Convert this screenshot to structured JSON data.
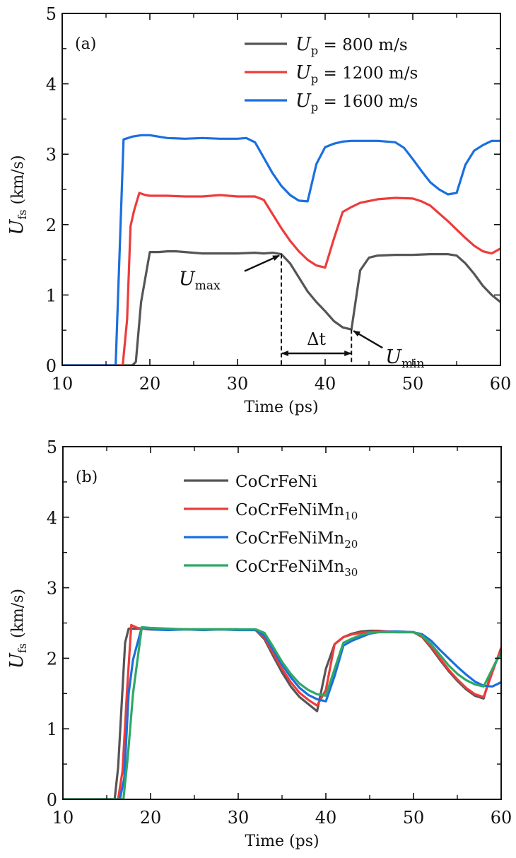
{
  "chart_data": [
    {
      "type": "line",
      "panel_label": "(a)",
      "title": "",
      "xlabel": "Time (ps)",
      "ylabel_main": "U",
      "ylabel_sub": "fs",
      "ylabel_unit": " (km/s)",
      "xlim": [
        10,
        60
      ],
      "ylim": [
        0,
        5
      ],
      "xticks": [
        10,
        20,
        30,
        40,
        50,
        60
      ],
      "yticks": [
        0,
        1,
        2,
        3,
        4,
        5
      ],
      "grid": false,
      "legend_position": "top-right",
      "series": [
        {
          "name": "U_p = 800 m/s",
          "legend_main": "U",
          "legend_sub": "p",
          "legend_rest": " = 800  m/s",
          "color": "#555555",
          "x": [
            10,
            12,
            14,
            16,
            17,
            18,
            18.4,
            19,
            20,
            21,
            22,
            23,
            24,
            25,
            26,
            28,
            30,
            32,
            33,
            34,
            35,
            36,
            37,
            38,
            39,
            40,
            41,
            42,
            43,
            44,
            45,
            46,
            48,
            50,
            52,
            54,
            55,
            56,
            57,
            58,
            59,
            60
          ],
          "values": [
            0,
            0,
            0,
            0,
            0,
            0,
            0.05,
            0.9,
            1.61,
            1.61,
            1.62,
            1.62,
            1.61,
            1.6,
            1.59,
            1.59,
            1.59,
            1.6,
            1.59,
            1.6,
            1.58,
            1.45,
            1.25,
            1.05,
            0.9,
            0.77,
            0.63,
            0.54,
            0.51,
            1.35,
            1.53,
            1.56,
            1.57,
            1.57,
            1.58,
            1.58,
            1.56,
            1.45,
            1.3,
            1.13,
            1.0,
            0.9
          ]
        },
        {
          "name": "U_p = 1200 m/s",
          "legend_main": "U",
          "legend_sub": "p",
          "legend_rest": " = 1200  m/s",
          "color": "#ee3b3b",
          "x": [
            10,
            12,
            14,
            16,
            16.9,
            17.4,
            17.8,
            18.2,
            18.8,
            19.5,
            20,
            22,
            24,
            26,
            28,
            30,
            32,
            33,
            34,
            35,
            36,
            37,
            38,
            39,
            40,
            41,
            42,
            43,
            44,
            46,
            48,
            50,
            51,
            52,
            53,
            54,
            55,
            56,
            57,
            58,
            59,
            60
          ],
          "values": [
            0,
            0,
            0,
            0,
            0,
            0.65,
            1.98,
            2.2,
            2.45,
            2.42,
            2.41,
            2.41,
            2.4,
            2.4,
            2.42,
            2.4,
            2.4,
            2.35,
            2.15,
            1.95,
            1.77,
            1.62,
            1.5,
            1.42,
            1.39,
            1.8,
            2.18,
            2.25,
            2.31,
            2.36,
            2.38,
            2.37,
            2.33,
            2.27,
            2.16,
            2.05,
            1.93,
            1.81,
            1.7,
            1.62,
            1.59,
            1.66
          ]
        },
        {
          "name": "U_p = 1600 m/s",
          "legend_main": "U",
          "legend_sub": "p",
          "legend_rest": " = 1600  m/s",
          "color": "#1a6fdf",
          "x": [
            10,
            12,
            14,
            16,
            16.1,
            17,
            18,
            19,
            20,
            21,
            22,
            24,
            26,
            28,
            30,
            31,
            32,
            33,
            34,
            35,
            36,
            37,
            38,
            39,
            40,
            41,
            42,
            43,
            44,
            46,
            48,
            49,
            50,
            51,
            52,
            53,
            54,
            55,
            56,
            57,
            58,
            59,
            60
          ],
          "values": [
            0,
            0,
            0,
            0,
            0,
            3.21,
            3.25,
            3.27,
            3.27,
            3.25,
            3.23,
            3.22,
            3.23,
            3.22,
            3.22,
            3.23,
            3.17,
            2.95,
            2.73,
            2.55,
            2.42,
            2.34,
            2.33,
            2.86,
            3.1,
            3.15,
            3.18,
            3.19,
            3.19,
            3.19,
            3.17,
            3.09,
            2.93,
            2.76,
            2.6,
            2.5,
            2.43,
            2.45,
            2.85,
            3.05,
            3.13,
            3.19,
            3.19
          ]
        }
      ],
      "annotations": [
        {
          "text_main": "U",
          "text_sub": "max",
          "x": 35,
          "y": 1.58,
          "kind": "arrow-label"
        },
        {
          "text_main": "U",
          "text_sub": "min",
          "x": 43,
          "y": 0.51,
          "kind": "arrow-label"
        },
        {
          "text": "Δt",
          "x_from": 35,
          "x_to": 43,
          "kind": "double-arrow"
        }
      ]
    },
    {
      "type": "line",
      "panel_label": "(b)",
      "title": "",
      "xlabel": "Time (ps)",
      "ylabel_main": "U",
      "ylabel_sub": "fs",
      "ylabel_unit": " (km/s)",
      "xlim": [
        10,
        60
      ],
      "ylim": [
        0,
        5
      ],
      "xticks": [
        10,
        20,
        30,
        40,
        50,
        60
      ],
      "yticks": [
        0,
        1,
        2,
        3,
        4,
        5
      ],
      "grid": false,
      "legend_position": "top-center",
      "series": [
        {
          "name": "CoCrFeNi",
          "legend_main": "CoCrFeNi",
          "legend_sub": "",
          "color": "#555555",
          "x": [
            10,
            12,
            14,
            15.9,
            16.3,
            17.1,
            17.5,
            18,
            19,
            20,
            22,
            24,
            26,
            28,
            30,
            32,
            33,
            34,
            35,
            36,
            37,
            38,
            39,
            40,
            41,
            42,
            43,
            44,
            45,
            46,
            48,
            50,
            51,
            52,
            53,
            54,
            55,
            56,
            57,
            58,
            59,
            60
          ],
          "values": [
            0,
            0,
            0,
            0,
            0.45,
            2.22,
            2.42,
            2.42,
            2.42,
            2.41,
            2.41,
            2.41,
            2.41,
            2.41,
            2.41,
            2.4,
            2.27,
            2.03,
            1.8,
            1.6,
            1.45,
            1.35,
            1.25,
            1.85,
            2.2,
            2.3,
            2.35,
            2.38,
            2.39,
            2.39,
            2.37,
            2.37,
            2.3,
            2.15,
            1.98,
            1.82,
            1.68,
            1.56,
            1.47,
            1.43,
            1.85,
            2.1
          ]
        },
        {
          "name": "CoCrFeNiMn10",
          "legend_main": "CoCrFeNiMn",
          "legend_sub": "10",
          "color": "#ee3b3b",
          "x": [
            10,
            12,
            14,
            16.3,
            16.8,
            17.3,
            17.8,
            18.5,
            19,
            20,
            22,
            24,
            26,
            28,
            30,
            32,
            33,
            34,
            35,
            36,
            37,
            38,
            39,
            40,
            41,
            42,
            43,
            44,
            45,
            46,
            48,
            50,
            51,
            52,
            53,
            54,
            55,
            56,
            57,
            58,
            59,
            60
          ],
          "values": [
            0,
            0,
            0,
            0,
            0.4,
            1.5,
            2.47,
            2.43,
            2.42,
            2.41,
            2.41,
            2.41,
            2.41,
            2.41,
            2.41,
            2.4,
            2.29,
            2.07,
            1.85,
            1.66,
            1.51,
            1.41,
            1.33,
            1.55,
            2.2,
            2.3,
            2.34,
            2.36,
            2.37,
            2.38,
            2.38,
            2.37,
            2.31,
            2.17,
            2.0,
            1.84,
            1.7,
            1.58,
            1.49,
            1.45,
            1.8,
            2.15
          ]
        },
        {
          "name": "CoCrFeNiMn20",
          "legend_main": "CoCrFeNiMn",
          "legend_sub": "20",
          "color": "#1a6fdf",
          "x": [
            10,
            12,
            14,
            16.5,
            17,
            17.5,
            18,
            19,
            20,
            22,
            24,
            26,
            28,
            30,
            32,
            33,
            34,
            35,
            36,
            37,
            38,
            39,
            40,
            41,
            42,
            43,
            44,
            45,
            46,
            48,
            50,
            51,
            52,
            53,
            54,
            55,
            56,
            57,
            58,
            59,
            60
          ],
          "values": [
            0,
            0,
            0,
            0,
            0.3,
            1.5,
            1.98,
            2.44,
            2.41,
            2.4,
            2.41,
            2.4,
            2.41,
            2.4,
            2.4,
            2.32,
            2.12,
            1.91,
            1.73,
            1.58,
            1.48,
            1.42,
            1.39,
            1.75,
            2.18,
            2.25,
            2.3,
            2.35,
            2.37,
            2.38,
            2.37,
            2.34,
            2.25,
            2.12,
            2.0,
            1.88,
            1.77,
            1.67,
            1.61,
            1.6,
            1.66
          ]
        },
        {
          "name": "CoCrFeNiMn30",
          "legend_main": "CoCrFeNiMn",
          "legend_sub": "30",
          "color": "#2ea866",
          "x": [
            10,
            12,
            14,
            16.9,
            17.4,
            18,
            19,
            20,
            22,
            24,
            26,
            28,
            30,
            32,
            33,
            34,
            35,
            36,
            37,
            38,
            39,
            40,
            41,
            42,
            43,
            44,
            45,
            46,
            48,
            50,
            51,
            52,
            53,
            54,
            55,
            56,
            57,
            58,
            59,
            60
          ],
          "values": [
            0,
            0,
            0,
            0,
            0.6,
            1.5,
            2.44,
            2.43,
            2.42,
            2.41,
            2.41,
            2.41,
            2.41,
            2.41,
            2.36,
            2.16,
            1.95,
            1.78,
            1.64,
            1.55,
            1.49,
            1.47,
            1.85,
            2.22,
            2.28,
            2.33,
            2.36,
            2.37,
            2.37,
            2.37,
            2.32,
            2.2,
            2.05,
            1.9,
            1.78,
            1.69,
            1.63,
            1.6,
            1.85,
            2.08
          ]
        }
      ],
      "annotations": []
    }
  ]
}
